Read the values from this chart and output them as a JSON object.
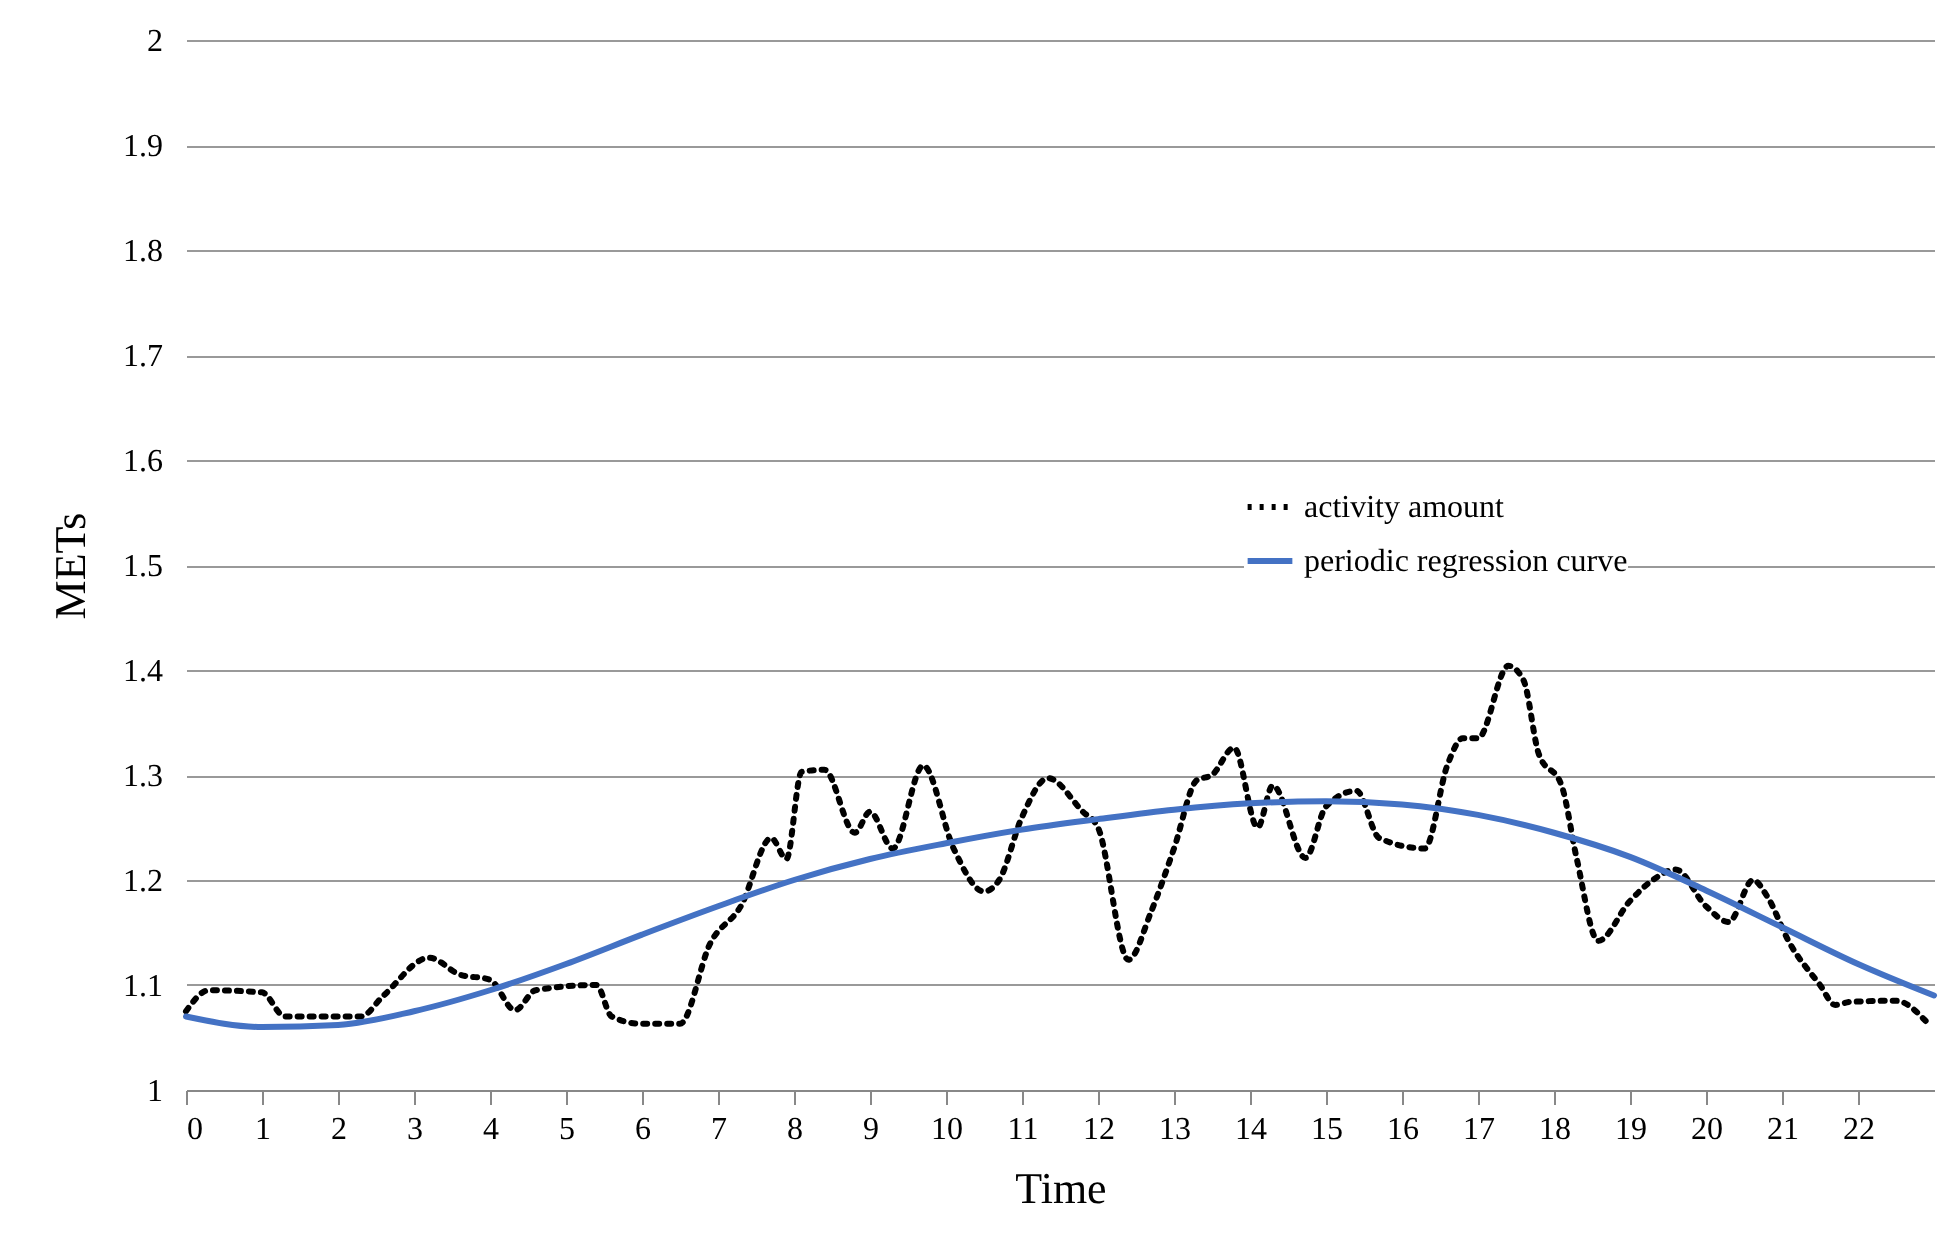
{
  "chart_data": {
    "type": "line",
    "xlabel": "Time",
    "ylabel": "METs",
    "xlim": [
      0,
      23
    ],
    "xticks": [
      0,
      1,
      2,
      3,
      4,
      5,
      6,
      7,
      8,
      9,
      10,
      11,
      12,
      13,
      14,
      15,
      16,
      17,
      18,
      19,
      20,
      21,
      22
    ],
    "ylim": [
      1,
      2
    ],
    "yticks": [
      1,
      1.1,
      1.2,
      1.3,
      1.4,
      1.5,
      1.6,
      1.7,
      1.8,
      1.9,
      2
    ],
    "grid": "y",
    "legend": "right",
    "marker": "none",
    "series": [
      {
        "name": "activity amount",
        "color": "#000000",
        "line_style": "dotted",
        "x": [
          0,
          0.3,
          1,
          1.3,
          2.3,
          2.6,
          3.2,
          3.6,
          4.0,
          4.33,
          4.6,
          5.4,
          5.6,
          6.0,
          6.5,
          6.9,
          7.3,
          7.7,
          7.9,
          8.1,
          8.4,
          8.8,
          9.0,
          9.3,
          9.7,
          10.1,
          10.5,
          10.7,
          11.0,
          11.34,
          11.8,
          12.0,
          12.4,
          12.7,
          13.0,
          13.3,
          13.5,
          13.79,
          14.1,
          14.3,
          14.73,
          15.0,
          15.4,
          15.7,
          16.3,
          16.6,
          16.8,
          17.0,
          17.4,
          17.6,
          17.8,
          18.1,
          18.3,
          18.58,
          19.0,
          19.3,
          19.6,
          20.0,
          20.3,
          20.62,
          20.8,
          21.1,
          21.5,
          21.7,
          21.9,
          22.5,
          22.9
        ],
        "values": [
          1.075,
          1.095,
          1.093,
          1.07,
          1.07,
          1.09,
          1.126,
          1.11,
          1.105,
          1.076,
          1.095,
          1.1,
          1.07,
          1.063,
          1.063,
          1.14,
          1.175,
          1.24,
          1.22,
          1.303,
          1.305,
          1.245,
          1.265,
          1.23,
          1.309,
          1.23,
          1.189,
          1.2,
          1.26,
          1.297,
          1.265,
          1.25,
          1.124,
          1.17,
          1.23,
          1.295,
          1.3,
          1.326,
          1.25,
          1.29,
          1.221,
          1.27,
          1.285,
          1.24,
          1.23,
          1.31,
          1.335,
          1.335,
          1.404,
          1.39,
          1.32,
          1.29,
          1.22,
          1.142,
          1.18,
          1.2,
          1.21,
          1.175,
          1.16,
          1.2,
          1.185,
          1.14,
          1.1,
          1.081,
          1.084,
          1.085,
          1.065
        ]
      },
      {
        "name": "periodic regression curve",
        "color": "#4472c4",
        "line_style": "solid",
        "x": [
          0,
          1,
          2,
          3,
          4,
          5,
          6,
          7,
          8,
          9,
          10,
          11,
          12,
          13,
          14,
          15,
          16,
          17,
          18,
          19,
          20,
          21,
          22,
          23
        ],
        "values": [
          1.07,
          1.06,
          1.062,
          1.075,
          1.095,
          1.12,
          1.148,
          1.175,
          1.2,
          1.22,
          1.235,
          1.248,
          1.258,
          1.267,
          1.273,
          1.275,
          1.272,
          1.262,
          1.245,
          1.222,
          1.19,
          1.155,
          1.12,
          1.09
        ]
      }
    ]
  }
}
